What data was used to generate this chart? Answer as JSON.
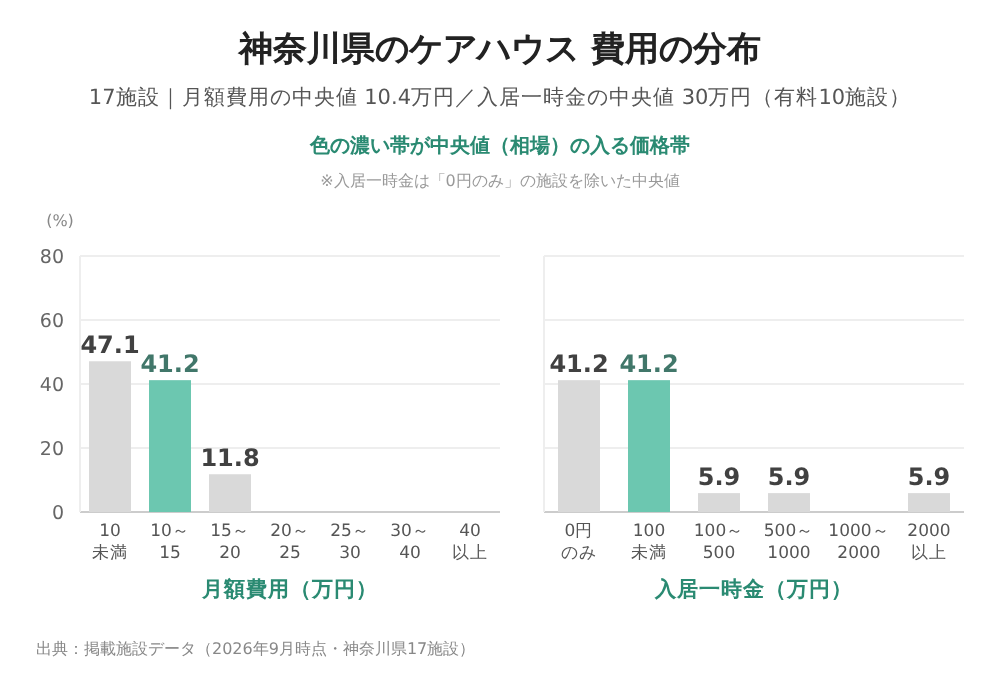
{
  "chart_data": [
    {
      "type": "bar",
      "title": "神奈川県のケアハウス 費用の分布",
      "subtitle": "17施設｜月額費用の中央値 10.4万円／入居一時金の中央値 30万円（有料10施設）",
      "annotations": [
        "色の濃い帯が中央値（相場）の入る価格帯",
        "※入居一時金は「0円のみ」の施設を除いた中央値",
        "出典：掲載施設データ（2026年9月時点・神奈川県17施設）"
      ],
      "ylabel": "(%)",
      "xlabel": "月額費用（万円）",
      "categories": [
        "10\n未満",
        "10～\n15",
        "15～\n20",
        "20～\n25",
        "25～\n30",
        "30～\n40",
        "40\n以上"
      ],
      "values": [
        47.1,
        41.2,
        11.8,
        0,
        0,
        0,
        0
      ],
      "value_labels": [
        "47.1",
        "41.2",
        "11.8",
        null,
        null,
        null,
        null
      ],
      "colors": [
        "#d9d9d9",
        "#6cc7b0",
        "#d9d9d9",
        "#d9d9d9",
        "#d9d9d9",
        "#d9d9d9",
        "#d9d9d9"
      ],
      "ylim": [
        0,
        80
      ],
      "yticks": [
        0,
        20,
        40,
        60,
        80
      ],
      "grid": "y"
    },
    {
      "type": "bar",
      "xlabel": "入居一時金（万円）",
      "categories": [
        "0円のみ",
        "100\n未満",
        "100～\n500",
        "500～\n1000",
        "1000～\n2000",
        "2000\n以上"
      ],
      "values": [
        41.2,
        41.2,
        5.9,
        5.9,
        0,
        5.9
      ],
      "value_labels": [
        "41.2",
        "41.2",
        "5.9",
        "5.9",
        null,
        "5.9"
      ],
      "colors": [
        "#d9d9d9",
        "#6cc7b0",
        "#d9d9d9",
        "#d9d9d9",
        "#d9d9d9",
        "#d9d9d9"
      ],
      "ylim": [
        0,
        80
      ],
      "yticks": [
        0,
        20,
        40,
        60,
        80
      ],
      "grid": "y",
      "tick_labels": "x"
    }
  ]
}
